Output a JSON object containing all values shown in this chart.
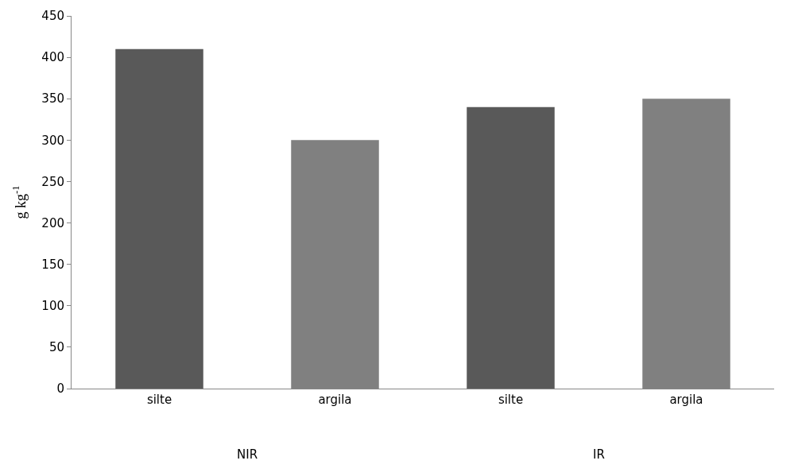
{
  "chart_data": {
    "type": "bar",
    "ylabel": "g kg$^{-1}$",
    "categories": [
      "silte",
      "argila",
      "silte",
      "argila"
    ],
    "values": [
      410,
      300,
      340,
      350
    ],
    "colors": [
      "#595959",
      "#808080",
      "#595959",
      "#808080"
    ],
    "ylim": [
      0,
      450
    ],
    "yticks": [
      0,
      50,
      100,
      150,
      200,
      250,
      300,
      350,
      400,
      450
    ],
    "annotations": [
      "NIR",
      "IR"
    ],
    "grid": false
  }
}
